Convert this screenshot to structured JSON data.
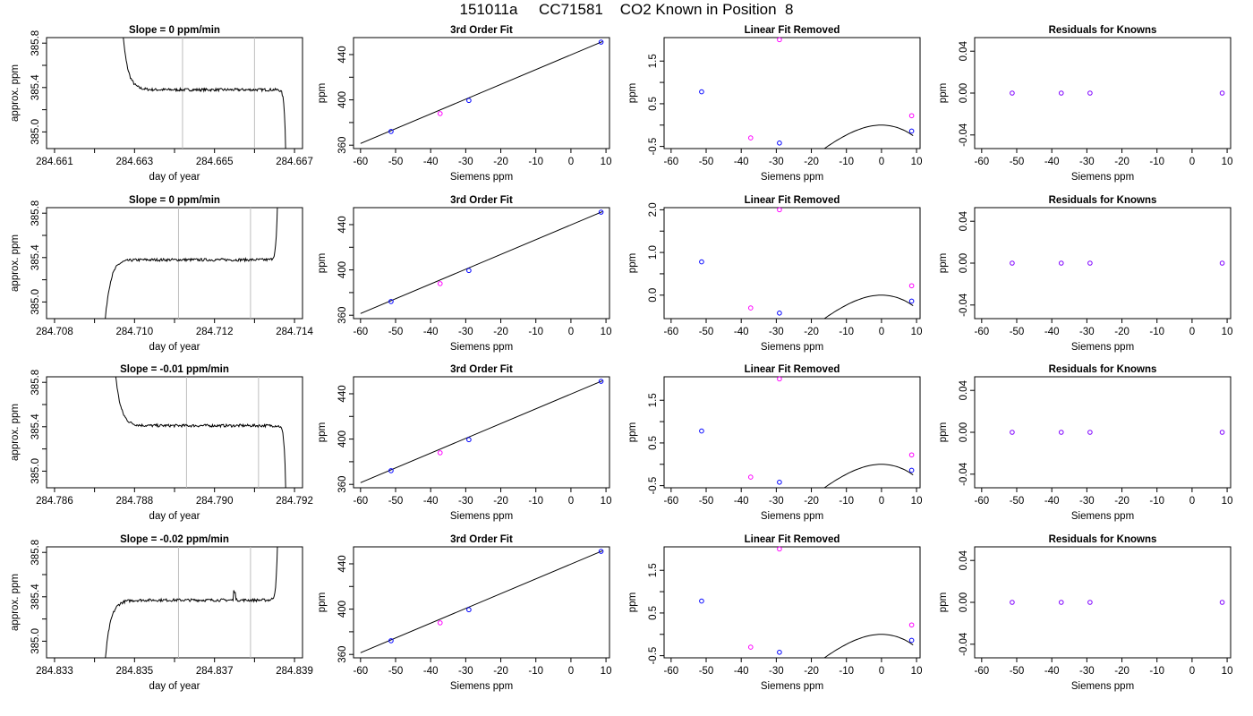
{
  "figure": {
    "title": "151011a     CC71581    CO2 Known in Position  8"
  },
  "colors": {
    "line": "#000000",
    "marker_blue": "#0000ff",
    "marker_magenta": "#ff00ff",
    "marker_purple": "#7f00ff",
    "window_line": "#bebebe"
  },
  "chart_data": [
    {
      "type": "line",
      "row": 0,
      "title": "Slope =  0  ppm/min",
      "xlabel": "day of year",
      "ylabel": "approx. ppm",
      "xlim": [
        284.6608,
        284.6672
      ],
      "ylim": [
        384.85,
        385.85
      ],
      "xticks": [
        284.661,
        284.662,
        284.663,
        284.664,
        284.665,
        284.666,
        284.667
      ],
      "xticklabels": [
        "284.661",
        "",
        "284.663",
        "",
        "284.665",
        "",
        "284.667"
      ],
      "yticks": [
        385.0,
        385.2,
        385.4,
        385.6,
        385.8
      ],
      "yticklabels": [
        "385.0",
        "",
        "385.4",
        "",
        "385.8"
      ],
      "vlines": [
        284.6642,
        284.666
      ],
      "shape": {
        "start": 284.6626,
        "end": 284.6668,
        "plateau": 385.38,
        "lead": "high",
        "trail": "low"
      }
    },
    {
      "type": "scatter",
      "row": 0,
      "title": "3rd Order Fit",
      "xlabel": "Siemens ppm",
      "ylabel": "ppm",
      "xlim": [
        -62,
        11
      ],
      "ylim": [
        357,
        455
      ],
      "xticks": [
        -60,
        -50,
        -40,
        -30,
        -20,
        -10,
        0,
        10
      ],
      "xticklabels": [
        "-60",
        "-50",
        "-40",
        "-30",
        "-20",
        "-10",
        "0",
        "10"
      ],
      "yticks": [
        360,
        380,
        400,
        420,
        440
      ],
      "yticklabels": [
        "360",
        "",
        "400",
        "",
        "440"
      ],
      "points": [
        {
          "x": -51.3,
          "y": 372.1,
          "c": "blue"
        },
        {
          "x": -37.3,
          "y": 387.9,
          "c": "magenta"
        },
        {
          "x": -29.1,
          "y": 399.5,
          "c": "blue"
        },
        {
          "x": 8.6,
          "y": 451.0,
          "c": "blue"
        }
      ],
      "fit": {
        "kind": "linear",
        "x": [
          -60,
          9
        ],
        "y": [
          361.5,
          451.5
        ]
      }
    },
    {
      "type": "scatter",
      "row": 0,
      "title": "Linear Fit Removed",
      "xlabel": "Siemens ppm",
      "ylabel": "ppm",
      "xlim": [
        -62,
        11
      ],
      "ylim": [
        -0.55,
        2.05
      ],
      "xticks": [
        -60,
        -50,
        -40,
        -30,
        -20,
        -10,
        0,
        10
      ],
      "xticklabels": [
        "-60",
        "-50",
        "-40",
        "-30",
        "-20",
        "-10",
        "0",
        "10"
      ],
      "yticks": [
        -0.5,
        0,
        0.5,
        1.0,
        1.5
      ],
      "yticklabels": [
        "-0.5",
        "",
        "0.5",
        "",
        "1.5"
      ],
      "points": [
        {
          "x": -51.3,
          "y": 0.78,
          "c": "blue"
        },
        {
          "x": -37.3,
          "y": -0.3,
          "c": "magenta"
        },
        {
          "x": -29.1,
          "y": -0.42,
          "c": "blue"
        },
        {
          "x": 8.6,
          "y": -0.14,
          "c": "blue"
        },
        {
          "x": -29.1,
          "y": 2.0,
          "c": "magenta"
        },
        {
          "x": 8.6,
          "y": 0.22,
          "c": "magenta"
        }
      ],
      "fit": {
        "kind": "cubic",
        "x": [
          -60,
          9
        ],
        "cubic": [
          -3.92e-05,
          -0.00271,
          0.0,
          0.0
        ]
      }
    },
    {
      "type": "scatter",
      "row": 0,
      "title": "Residuals for Knowns",
      "xlabel": "Siemens ppm",
      "ylabel": "ppm",
      "xlim": [
        -62,
        11
      ],
      "ylim": [
        -0.053,
        0.053
      ],
      "xticks": [
        -60,
        -50,
        -40,
        -30,
        -20,
        -10,
        0,
        10
      ],
      "xticklabels": [
        "-60",
        "-50",
        "-40",
        "-30",
        "-20",
        "-10",
        "0",
        "10"
      ],
      "yticks": [
        -0.04,
        0.0,
        0.04
      ],
      "yticklabels": [
        "-0.04",
        "0.00",
        "0.04"
      ],
      "points": [
        {
          "x": -51.3,
          "y": 0,
          "c": "purple"
        },
        {
          "x": -37.3,
          "y": 0,
          "c": "purple"
        },
        {
          "x": -29.1,
          "y": 0,
          "c": "purple"
        },
        {
          "x": 8.6,
          "y": 0,
          "c": "purple"
        }
      ]
    },
    {
      "type": "line",
      "row": 1,
      "title": "Slope =  0  ppm/min",
      "xlabel": "day of year",
      "ylabel": "approx. ppm",
      "xlim": [
        284.7078,
        284.7142
      ],
      "ylim": [
        384.85,
        385.85
      ],
      "xticks": [
        284.708,
        284.709,
        284.71,
        284.711,
        284.712,
        284.713,
        284.714
      ],
      "xticklabels": [
        "284.708",
        "",
        "284.710",
        "",
        "284.712",
        "",
        "284.714"
      ],
      "yticks": [
        385.0,
        385.2,
        385.4,
        385.6,
        385.8
      ],
      "yticklabels": [
        "385.0",
        "",
        "385.4",
        "",
        "385.8"
      ],
      "vlines": [
        284.7111,
        284.7129
      ],
      "shape": {
        "start": 284.7092,
        "end": 284.7136,
        "plateau": 385.38,
        "lead": "low",
        "trail": "high"
      }
    },
    {
      "type": "scatter",
      "row": 1,
      "title": "3rd Order Fit",
      "xlabel": "Siemens ppm",
      "ylabel": "ppm",
      "xlim": [
        -62,
        11
      ],
      "ylim": [
        357,
        455
      ],
      "xticks": [
        -60,
        -50,
        -40,
        -30,
        -20,
        -10,
        0,
        10
      ],
      "xticklabels": [
        "-60",
        "-50",
        "-40",
        "-30",
        "-20",
        "-10",
        "0",
        "10"
      ],
      "yticks": [
        360,
        380,
        400,
        420,
        440
      ],
      "yticklabels": [
        "360",
        "",
        "400",
        "",
        "440"
      ],
      "points": [
        {
          "x": -51.3,
          "y": 372.1,
          "c": "blue"
        },
        {
          "x": -37.3,
          "y": 387.9,
          "c": "magenta"
        },
        {
          "x": -29.1,
          "y": 399.5,
          "c": "blue"
        },
        {
          "x": 8.6,
          "y": 451.0,
          "c": "blue"
        }
      ],
      "fit": {
        "kind": "linear",
        "x": [
          -60,
          9
        ],
        "y": [
          361.5,
          451.5
        ]
      }
    },
    {
      "type": "scatter",
      "row": 1,
      "title": "Linear Fit Removed",
      "xlabel": "Siemens ppm",
      "ylabel": "ppm",
      "xlim": [
        -62,
        11
      ],
      "ylim": [
        -0.55,
        2.05
      ],
      "xticks": [
        -60,
        -50,
        -40,
        -30,
        -20,
        -10,
        0,
        10
      ],
      "xticklabels": [
        "-60",
        "-50",
        "-40",
        "-30",
        "-20",
        "-10",
        "0",
        "10"
      ],
      "yticks": [
        0.0,
        0.5,
        1.0,
        1.5,
        2.0
      ],
      "yticklabels": [
        "0.0",
        "",
        "1.0",
        "",
        "2.0"
      ],
      "points": [
        {
          "x": -51.3,
          "y": 0.78,
          "c": "blue"
        },
        {
          "x": -37.3,
          "y": -0.3,
          "c": "magenta"
        },
        {
          "x": -29.1,
          "y": -0.42,
          "c": "blue"
        },
        {
          "x": 8.6,
          "y": -0.14,
          "c": "blue"
        },
        {
          "x": -29.1,
          "y": 2.0,
          "c": "magenta"
        },
        {
          "x": 8.6,
          "y": 0.22,
          "c": "magenta"
        }
      ],
      "fit": {
        "kind": "cubic",
        "x": [
          -60,
          9
        ],
        "cubic": [
          -3.92e-05,
          -0.00271,
          0.0,
          0.0
        ]
      }
    },
    {
      "type": "scatter",
      "row": 1,
      "title": "Residuals for Knowns",
      "xlabel": "Siemens ppm",
      "ylabel": "ppm",
      "xlim": [
        -62,
        11
      ],
      "ylim": [
        -0.053,
        0.053
      ],
      "xticks": [
        -60,
        -50,
        -40,
        -30,
        -20,
        -10,
        0,
        10
      ],
      "xticklabels": [
        "-60",
        "-50",
        "-40",
        "-30",
        "-20",
        "-10",
        "0",
        "10"
      ],
      "yticks": [
        -0.04,
        0.0,
        0.04
      ],
      "yticklabels": [
        "-0.04",
        "0.00",
        "0.04"
      ],
      "points": [
        {
          "x": -51.3,
          "y": 0,
          "c": "purple"
        },
        {
          "x": -37.3,
          "y": 0,
          "c": "purple"
        },
        {
          "x": -29.1,
          "y": 0,
          "c": "purple"
        },
        {
          "x": 8.6,
          "y": 0,
          "c": "purple"
        }
      ]
    },
    {
      "type": "line",
      "row": 2,
      "title": "Slope =  -0.01  ppm/min",
      "xlabel": "day of year",
      "ylabel": "approx. ppm",
      "xlim": [
        284.7858,
        284.7922
      ],
      "ylim": [
        384.85,
        385.85
      ],
      "xticks": [
        284.786,
        284.787,
        284.788,
        284.789,
        284.79,
        284.791,
        284.792
      ],
      "xticklabels": [
        "284.786",
        "",
        "284.788",
        "",
        "284.790",
        "",
        "284.792"
      ],
      "yticks": [
        385.0,
        385.2,
        385.4,
        385.6,
        385.8
      ],
      "yticklabels": [
        "385.0",
        "",
        "385.4",
        "",
        "385.8"
      ],
      "vlines": [
        284.7893,
        284.7911
      ],
      "shape": {
        "start": 284.7874,
        "end": 284.7918,
        "plateau": 385.41,
        "lead": "high",
        "trail": "low"
      }
    },
    {
      "type": "scatter",
      "row": 2,
      "title": "3rd Order Fit",
      "xlabel": "Siemens ppm",
      "ylabel": "ppm",
      "xlim": [
        -62,
        11
      ],
      "ylim": [
        357,
        455
      ],
      "xticks": [
        -60,
        -50,
        -40,
        -30,
        -20,
        -10,
        0,
        10
      ],
      "xticklabels": [
        "-60",
        "-50",
        "-40",
        "-30",
        "-20",
        "-10",
        "0",
        "10"
      ],
      "yticks": [
        360,
        380,
        400,
        420,
        440
      ],
      "yticklabels": [
        "360",
        "",
        "400",
        "",
        "440"
      ],
      "points": [
        {
          "x": -51.3,
          "y": 372.1,
          "c": "blue"
        },
        {
          "x": -37.3,
          "y": 387.9,
          "c": "magenta"
        },
        {
          "x": -29.1,
          "y": 399.5,
          "c": "blue"
        },
        {
          "x": 8.6,
          "y": 451.0,
          "c": "blue"
        }
      ],
      "fit": {
        "kind": "linear",
        "x": [
          -60,
          9
        ],
        "y": [
          361.5,
          451.5
        ]
      }
    },
    {
      "type": "scatter",
      "row": 2,
      "title": "Linear Fit Removed",
      "xlabel": "Siemens ppm",
      "ylabel": "ppm",
      "xlim": [
        -62,
        11
      ],
      "ylim": [
        -0.55,
        2.05
      ],
      "xticks": [
        -60,
        -50,
        -40,
        -30,
        -20,
        -10,
        0,
        10
      ],
      "xticklabels": [
        "-60",
        "-50",
        "-40",
        "-30",
        "-20",
        "-10",
        "0",
        "10"
      ],
      "yticks": [
        -0.5,
        0,
        0.5,
        1.0,
        1.5
      ],
      "yticklabels": [
        "-0.5",
        "",
        "0.5",
        "",
        "1.5"
      ],
      "points": [
        {
          "x": -51.3,
          "y": 0.78,
          "c": "blue"
        },
        {
          "x": -37.3,
          "y": -0.3,
          "c": "magenta"
        },
        {
          "x": -29.1,
          "y": -0.42,
          "c": "blue"
        },
        {
          "x": 8.6,
          "y": -0.14,
          "c": "blue"
        },
        {
          "x": -29.1,
          "y": 2.0,
          "c": "magenta"
        },
        {
          "x": 8.6,
          "y": 0.22,
          "c": "magenta"
        }
      ],
      "fit": {
        "kind": "cubic",
        "x": [
          -60,
          9
        ],
        "cubic": [
          -3.92e-05,
          -0.00271,
          0.0,
          0.0
        ]
      }
    },
    {
      "type": "scatter",
      "row": 2,
      "title": "Residuals for Knowns",
      "xlabel": "Siemens ppm",
      "ylabel": "ppm",
      "xlim": [
        -62,
        11
      ],
      "ylim": [
        -0.053,
        0.053
      ],
      "xticks": [
        -60,
        -50,
        -40,
        -30,
        -20,
        -10,
        0,
        10
      ],
      "xticklabels": [
        "-60",
        "-50",
        "-40",
        "-30",
        "-20",
        "-10",
        "0",
        "10"
      ],
      "yticks": [
        -0.04,
        0.0,
        0.04
      ],
      "yticklabels": [
        "-0.04",
        "0.00",
        "0.04"
      ],
      "points": [
        {
          "x": -51.3,
          "y": 0,
          "c": "purple"
        },
        {
          "x": -37.3,
          "y": 0,
          "c": "purple"
        },
        {
          "x": -29.1,
          "y": 0,
          "c": "purple"
        },
        {
          "x": 8.6,
          "y": 0,
          "c": "purple"
        }
      ]
    },
    {
      "type": "line",
      "row": 3,
      "title": "Slope =  -0.02  ppm/min",
      "xlabel": "day of year",
      "ylabel": "approx. ppm",
      "xlim": [
        284.8328,
        284.8392
      ],
      "ylim": [
        384.85,
        385.85
      ],
      "xticks": [
        284.833,
        284.834,
        284.835,
        284.836,
        284.837,
        284.838,
        284.839
      ],
      "xticklabels": [
        "284.833",
        "",
        "284.835",
        "",
        "284.837",
        "",
        "284.839"
      ],
      "yticks": [
        385.0,
        385.2,
        385.4,
        385.6,
        385.8
      ],
      "yticklabels": [
        "385.0",
        "",
        "385.4",
        "",
        "385.8"
      ],
      "vlines": [
        284.8361,
        284.8379
      ],
      "shape": {
        "start": 284.8342,
        "end": 284.8386,
        "plateau": 385.37,
        "lead": "low",
        "trail": "high",
        "spike": [
          284.8375,
          284.8377
        ]
      }
    },
    {
      "type": "scatter",
      "row": 3,
      "title": "3rd Order Fit",
      "xlabel": "Siemens ppm",
      "ylabel": "ppm",
      "xlim": [
        -62,
        11
      ],
      "ylim": [
        357,
        455
      ],
      "xticks": [
        -60,
        -50,
        -40,
        -30,
        -20,
        -10,
        0,
        10
      ],
      "xticklabels": [
        "-60",
        "-50",
        "-40",
        "-30",
        "-20",
        "-10",
        "0",
        "10"
      ],
      "yticks": [
        360,
        380,
        400,
        420,
        440
      ],
      "yticklabels": [
        "360",
        "",
        "400",
        "",
        "440"
      ],
      "points": [
        {
          "x": -51.3,
          "y": 372.1,
          "c": "blue"
        },
        {
          "x": -37.3,
          "y": 387.9,
          "c": "magenta"
        },
        {
          "x": -29.1,
          "y": 399.5,
          "c": "blue"
        },
        {
          "x": 8.6,
          "y": 451.0,
          "c": "blue"
        }
      ],
      "fit": {
        "kind": "linear",
        "x": [
          -60,
          9
        ],
        "y": [
          361.5,
          451.5
        ]
      }
    },
    {
      "type": "scatter",
      "row": 3,
      "title": "Linear Fit Removed",
      "xlabel": "Siemens ppm",
      "ylabel": "ppm",
      "xlim": [
        -62,
        11
      ],
      "ylim": [
        -0.55,
        2.05
      ],
      "xticks": [
        -60,
        -50,
        -40,
        -30,
        -20,
        -10,
        0,
        10
      ],
      "xticklabels": [
        "-60",
        "-50",
        "-40",
        "-30",
        "-20",
        "-10",
        "0",
        "10"
      ],
      "yticks": [
        -0.5,
        0,
        0.5,
        1.0,
        1.5
      ],
      "yticklabels": [
        "-0.5",
        "",
        "0.5",
        "",
        "1.5"
      ],
      "points": [
        {
          "x": -51.3,
          "y": 0.78,
          "c": "blue"
        },
        {
          "x": -37.3,
          "y": -0.3,
          "c": "magenta"
        },
        {
          "x": -29.1,
          "y": -0.42,
          "c": "blue"
        },
        {
          "x": 8.6,
          "y": -0.14,
          "c": "blue"
        },
        {
          "x": -29.1,
          "y": 2.0,
          "c": "magenta"
        },
        {
          "x": 8.6,
          "y": 0.22,
          "c": "magenta"
        }
      ],
      "fit": {
        "kind": "cubic",
        "x": [
          -60,
          9
        ],
        "cubic": [
          -3.92e-05,
          -0.00271,
          0.0,
          0.0
        ]
      }
    },
    {
      "type": "scatter",
      "row": 3,
      "title": "Residuals for Knowns",
      "xlabel": "Siemens ppm",
      "ylabel": "ppm",
      "xlim": [
        -62,
        11
      ],
      "ylim": [
        -0.053,
        0.053
      ],
      "xticks": [
        -60,
        -50,
        -40,
        -30,
        -20,
        -10,
        0,
        10
      ],
      "xticklabels": [
        "-60",
        "-50",
        "-40",
        "-30",
        "-20",
        "-10",
        "0",
        "10"
      ],
      "yticks": [
        -0.04,
        0.0,
        0.04
      ],
      "yticklabels": [
        "-0.04",
        "0.00",
        "0.04"
      ],
      "points": [
        {
          "x": -51.3,
          "y": 0,
          "c": "purple"
        },
        {
          "x": -37.3,
          "y": 0,
          "c": "purple"
        },
        {
          "x": -29.1,
          "y": 0,
          "c": "purple"
        },
        {
          "x": 8.6,
          "y": 0,
          "c": "purple"
        }
      ]
    }
  ]
}
